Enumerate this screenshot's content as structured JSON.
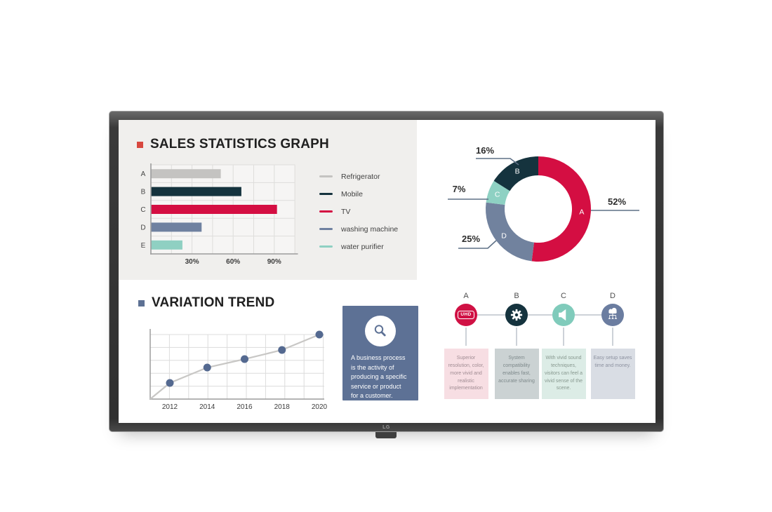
{
  "device": {
    "brand_logo": "LG"
  },
  "panels": {
    "sales": {
      "title": "SALES STATISTICS GRAPH"
    },
    "variation": {
      "title": "VARIATION TREND"
    }
  },
  "chart_data": [
    {
      "id": "sales-bar-chart",
      "type": "bar",
      "orientation": "horizontal",
      "title": "SALES STATISTICS GRAPH",
      "categories": [
        "A",
        "B",
        "C",
        "D",
        "E"
      ],
      "values": [
        51,
        66,
        92,
        37,
        23
      ],
      "value_unit": "%",
      "xlim": [
        0,
        105
      ],
      "xticks": [
        {
          "label": "30%",
          "value": 30
        },
        {
          "label": "60%",
          "value": 60
        },
        {
          "label": "90%",
          "value": 90
        }
      ],
      "grid": true,
      "bar_colors": [
        "#c4c3c1",
        "#15333e",
        "#d40e42",
        "#6f81a0",
        "#8fd0c2"
      ],
      "legend_position": "right",
      "legend": [
        {
          "label": "Refrigerator",
          "color": "#c4c3c1"
        },
        {
          "label": "Mobile",
          "color": "#15333e"
        },
        {
          "label": "TV",
          "color": "#d40e42"
        },
        {
          "label": "washing machine",
          "color": "#6f81a0"
        },
        {
          "label": "water purifier",
          "color": "#8fd0c2"
        }
      ]
    },
    {
      "id": "share-donut-chart",
      "type": "pie",
      "donut": true,
      "start_angle_deg": 0,
      "clockwise": true,
      "slices": [
        {
          "label": "A",
          "value": 52,
          "color": "#d40e42"
        },
        {
          "label": "D",
          "value": 25,
          "color": "#71829e"
        },
        {
          "label": "C",
          "value": 7,
          "color": "#8ed1c3"
        },
        {
          "label": "B",
          "value": 16,
          "color": "#15333e"
        }
      ]
    },
    {
      "id": "variation-line-chart",
      "type": "line",
      "title": "VARIATION TREND",
      "x": [
        2012,
        2014,
        2016,
        2018,
        2020
      ],
      "values": [
        23,
        45,
        57,
        70,
        92
      ],
      "ylim": [
        0,
        100
      ],
      "grid": true,
      "line_color": "#c8c7c5",
      "point_color": "#546990"
    }
  ],
  "info_box": {
    "icon": "magnifier-icon",
    "bg_color": "#5d7195",
    "text": "A business process is the activity of producing a specific service or product for a customer."
  },
  "features": {
    "items": [
      {
        "letter": "A",
        "icon": "uhd-badge-icon",
        "icon_label": "UHD",
        "circle_color": "#d01144",
        "box_color": "#f7dee3",
        "text_color": "#a18d94",
        "text": "Superior resolution, color, more vivid and realistic implementation"
      },
      {
        "letter": "B",
        "icon": "gear-icon",
        "circle_color": "#15333e",
        "box_color": "#cbd2d3",
        "text_color": "#7e898b",
        "text": "System compatibility enables fast, accurate sharing"
      },
      {
        "letter": "C",
        "icon": "speaker-icon",
        "circle_color": "#80cbbb",
        "box_color": "#dcece6",
        "text_color": "#87988f",
        "text": "With vivid sound techniques, visitors can feel a vivid sense of the scene."
      },
      {
        "letter": "D",
        "icon": "cloud-network-icon",
        "circle_color": "#6b7da0",
        "box_color": "#d9dde4",
        "text_color": "#8d92a0",
        "text": "Easy setup saves time and money."
      }
    ]
  },
  "accents": {
    "sales_bullet": "#d8483f",
    "variation_bullet": "#5d7194",
    "leader_line": "#5e7086",
    "panel_bg": "#f0efed"
  }
}
